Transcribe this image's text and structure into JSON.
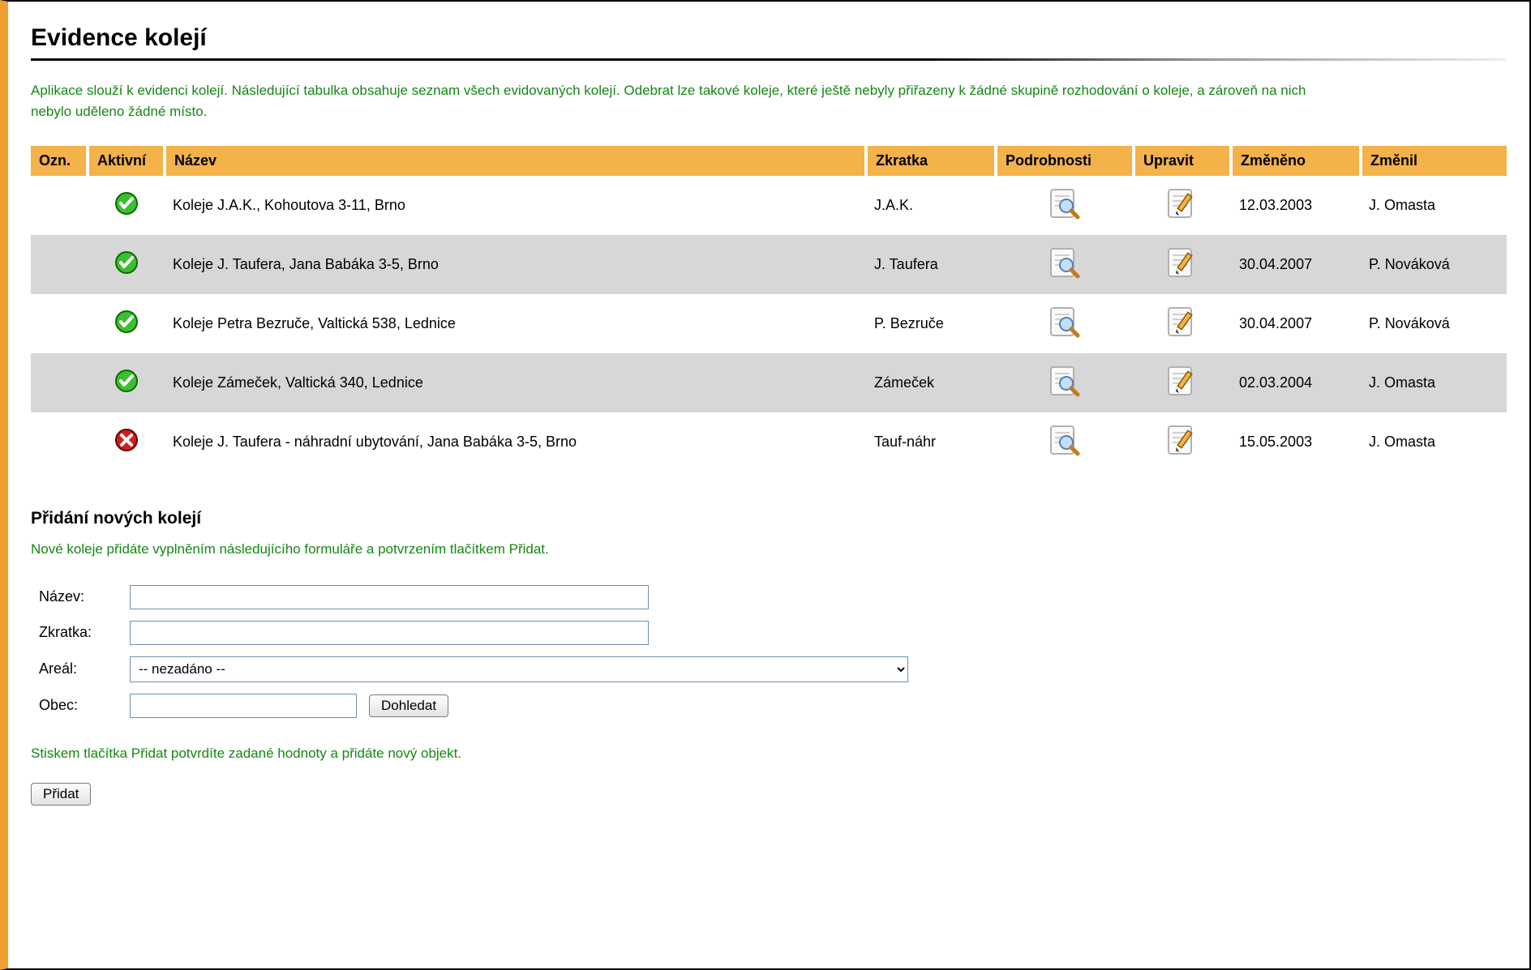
{
  "colors": {
    "accent_orange": "#f3b24a",
    "left_bar": "#f0a030",
    "green_text": "#138813",
    "author_link": "#cc5a00",
    "row_alt_bg": "#d7d7d7",
    "input_border": "#6d8fb3"
  },
  "page": {
    "title": "Evidence kolejí",
    "intro": "Aplikace slouží k evidenci kolejí. Následující tabulka obsahuje seznam všech evidovaných kolejí. Odebrat lze takové koleje, které ještě nebyly přiřazeny k žádné skupině rozhodování o koleje, a zároveň na nich nebylo uděleno žádné místo."
  },
  "table": {
    "columns": {
      "ozn": "Ozn.",
      "aktivni": "Aktivní",
      "nazev": "Název",
      "zkratka": "Zkratka",
      "podrobnosti": "Podrobnosti",
      "upravit": "Upravit",
      "zmeneno": "Změněno",
      "zmenil": "Změnil"
    },
    "rows": [
      {
        "active": true,
        "nazev": "Koleje J.A.K., Kohoutova 3-11, Brno",
        "zkratka": "J.A.K.",
        "zmeneno": "12.03.2003",
        "zmenil": "J. Omasta",
        "alt": false
      },
      {
        "active": true,
        "nazev": "Koleje J. Taufera, Jana Babáka 3-5, Brno",
        "zkratka": "J. Taufera",
        "zmeneno": "30.04.2007",
        "zmenil": "P. Nováková",
        "alt": true
      },
      {
        "active": true,
        "nazev": "Koleje Petra Bezruče, Valtická 538, Lednice",
        "zkratka": "P. Bezruče",
        "zmeneno": "30.04.2007",
        "zmenil": "P. Nováková",
        "alt": false
      },
      {
        "active": true,
        "nazev": "Koleje Zámeček, Valtická 340, Lednice",
        "zkratka": "Zámeček",
        "zmeneno": "02.03.2004",
        "zmenil": "J. Omasta",
        "alt": true
      },
      {
        "active": false,
        "nazev": "Koleje J. Taufera - náhradní ubytování, Jana Babáka 3-5, Brno",
        "zkratka": "Tauf-náhr",
        "zmeneno": "15.05.2003",
        "zmenil": "J. Omasta",
        "alt": false
      }
    ]
  },
  "add_section": {
    "heading": "Přidání nových kolejí",
    "note_top": "Nové koleje přidáte vyplněním následujícího formuláře a potvrzením tlačítkem Přidat.",
    "labels": {
      "nazev": "Název:",
      "zkratka": "Zkratka:",
      "areal": "Areál:",
      "obec": "Obec:"
    },
    "areal_selected": "-- nezadáno --",
    "btn_dohledat": "Dohledat",
    "note_bottom": "Stiskem tlačítka Přidat potvrdíte zadané hodnoty a přidáte nový objekt.",
    "btn_pridat": "Přidat"
  }
}
